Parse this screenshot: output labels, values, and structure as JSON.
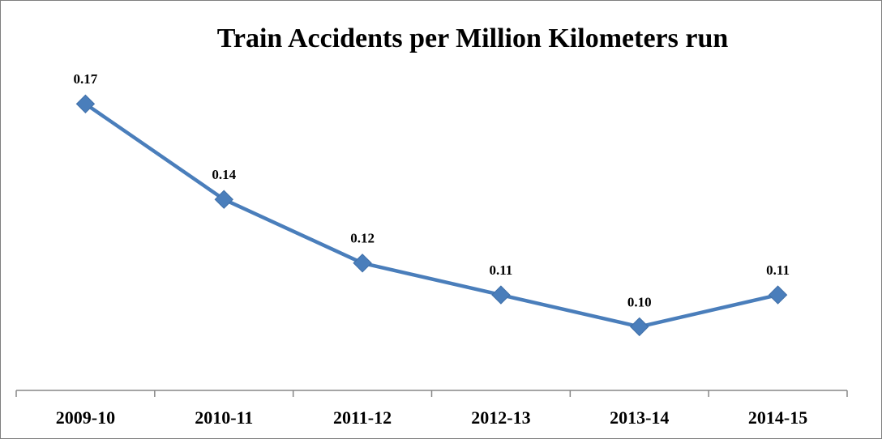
{
  "chart_data": {
    "type": "line",
    "title": "Train Accidents per Million Kilometers run",
    "categories": [
      "2009-10",
      "2010-11",
      "2011-12",
      "2012-13",
      "2013-14",
      "2014-15"
    ],
    "series": [
      {
        "color": "#4a7ebb",
        "values": [
          0.17,
          0.14,
          0.12,
          0.11,
          0.1,
          0.11
        ],
        "value_labels": [
          "0.17",
          "0.14",
          "0.12",
          "0.11",
          "0.10",
          "0.11"
        ]
      }
    ],
    "ylim": [
      0.08,
      0.18
    ]
  }
}
